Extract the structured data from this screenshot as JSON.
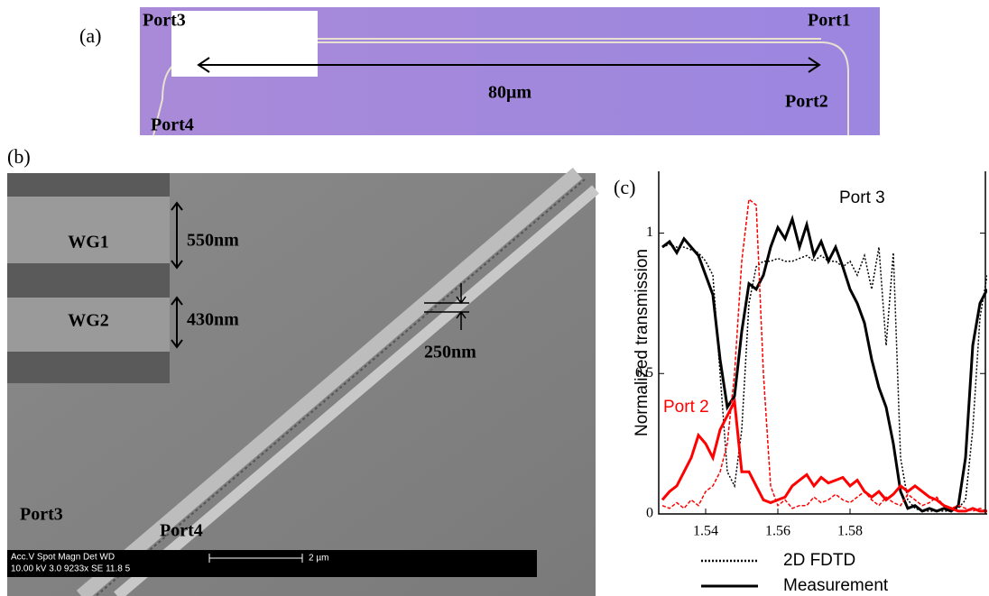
{
  "panel_a": {
    "label": "(a)",
    "ports": [
      "Port3",
      "Port1",
      "Port4",
      "Port2"
    ],
    "length": "80μm"
  },
  "panel_b": {
    "label": "(b)",
    "inset": [
      "WG1",
      "WG2"
    ],
    "widths": [
      "550nm",
      "430nm"
    ],
    "gap": "250nm",
    "ports": [
      "Port3",
      "Port4"
    ],
    "scale_bar": {
      "header": "Acc.V   Spot  Magn   Det  WD",
      "values": "10.00 kV 3.0   9233x  SE  11.8   5",
      "length": "2 µm"
    }
  },
  "chart_data": {
    "type": "line",
    "label": "(c)",
    "y_label": "Normalized transmission",
    "x": [
      1.528,
      1.53,
      1.532,
      1.534,
      1.536,
      1.538,
      1.54,
      1.542,
      1.544,
      1.546,
      1.548,
      1.55,
      1.552,
      1.554,
      1.556,
      1.558,
      1.56,
      1.562,
      1.564,
      1.566,
      1.568,
      1.57,
      1.572,
      1.574,
      1.576,
      1.578,
      1.58,
      1.582,
      1.584,
      1.586,
      1.588,
      1.59,
      1.592,
      1.594,
      1.596,
      1.598,
      1.6,
      1.602,
      1.604,
      1.606,
      1.608,
      1.61,
      1.612,
      1.614,
      1.616,
      1.618
    ],
    "series": [
      {
        "label": "Port 3",
        "color": "#000000",
        "measurement": [
          0.95,
          0.97,
          0.93,
          0.98,
          0.95,
          0.92,
          0.85,
          0.78,
          0.55,
          0.38,
          0.42,
          0.65,
          0.82,
          0.8,
          0.85,
          0.95,
          1.02,
          0.98,
          1.05,
          0.95,
          1.03,
          0.92,
          0.97,
          0.9,
          0.95,
          0.88,
          0.8,
          0.75,
          0.68,
          0.55,
          0.45,
          0.38,
          0.25,
          0.08,
          0.02,
          0.03,
          0.01,
          0.02,
          0.01,
          0.02,
          0.01,
          0.03,
          0.2,
          0.6,
          0.75,
          0.8
        ],
        "fdtd": [
          0.95,
          0.96,
          0.95,
          0.95,
          0.94,
          0.93,
          0.9,
          0.85,
          0.5,
          0.15,
          0.1,
          0.3,
          0.75,
          0.88,
          0.9,
          0.9,
          0.91,
          0.9,
          0.9,
          0.91,
          0.92,
          0.9,
          0.92,
          0.9,
          0.9,
          0.88,
          0.9,
          0.85,
          0.92,
          0.8,
          0.95,
          0.6,
          0.93,
          0.2,
          0.05,
          0.02,
          0.01,
          0.01,
          0.01,
          0.01,
          0.01,
          0.02,
          0.05,
          0.3,
          0.7,
          0.85
        ]
      },
      {
        "label": "Port 2",
        "color": "#ff0000",
        "measurement": [
          0.05,
          0.08,
          0.1,
          0.15,
          0.2,
          0.28,
          0.25,
          0.2,
          0.3,
          0.35,
          0.4,
          0.15,
          0.15,
          0.1,
          0.05,
          0.04,
          0.05,
          0.06,
          0.1,
          0.12,
          0.14,
          0.1,
          0.13,
          0.11,
          0.12,
          0.13,
          0.1,
          0.12,
          0.08,
          0.06,
          0.08,
          0.05,
          0.07,
          0.1,
          0.08,
          0.1,
          0.08,
          0.06,
          0.05,
          0.03,
          0.02,
          0.01,
          0.01,
          0.02,
          0.01,
          0.01
        ],
        "fdtd": [
          0.03,
          0.02,
          0.04,
          0.02,
          0.05,
          0.03,
          0.08,
          0.1,
          0.15,
          0.25,
          0.5,
          0.9,
          1.12,
          1.1,
          0.5,
          0.1,
          0.03,
          0.05,
          0.02,
          0.03,
          0.03,
          0.06,
          0.04,
          0.05,
          0.07,
          0.05,
          0.04,
          0.06,
          0.08,
          0.05,
          0.03,
          0.06,
          0.04,
          0.03,
          0.07,
          0.05,
          0.03,
          0.04,
          0.06,
          0.03,
          0.02,
          0.03,
          0.02,
          0.01,
          0.02,
          0.01
        ]
      }
    ],
    "legend": [
      {
        "name": "2D FDTD",
        "dash": "dotted"
      },
      {
        "name": "Measurement",
        "dash": "solid"
      }
    ],
    "xlim": [
      1.527,
      1.618
    ],
    "ylim": [
      0,
      1.22
    ],
    "xticks": [
      1.54,
      1.56,
      1.58
    ],
    "yticks": [
      0,
      0.5,
      1
    ]
  }
}
